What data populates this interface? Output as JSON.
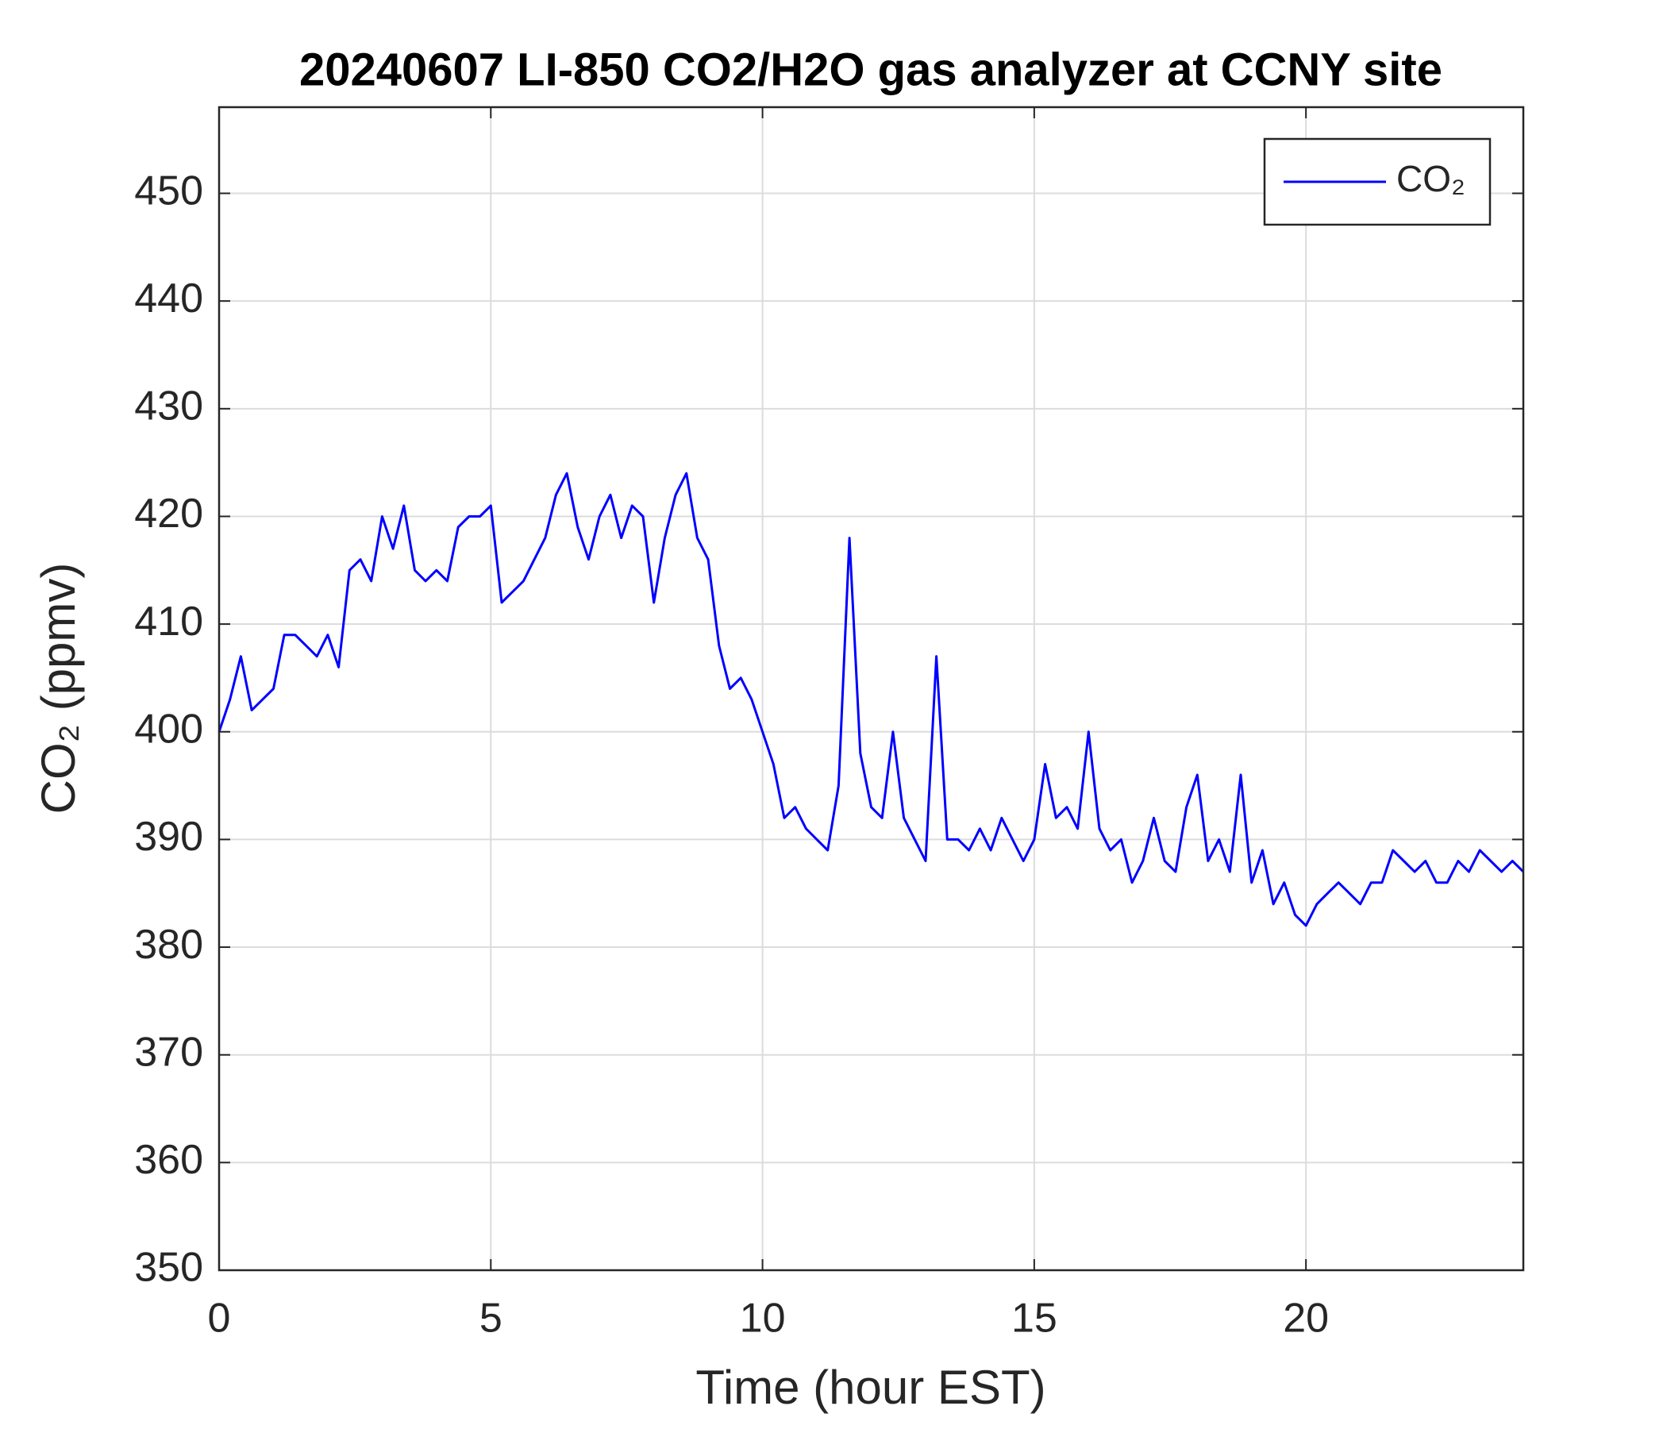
{
  "chart_data": {
    "type": "line",
    "title": "20240607 LI-850 CO2/H2O gas analyzer at CCNY site",
    "xlabel": "Time (hour EST)",
    "ylabel": "CO₂ (ppmv)",
    "x": [
      0,
      0.2,
      0.4,
      0.6,
      0.8,
      1,
      1.2,
      1.4,
      1.6,
      1.8,
      2,
      2.2,
      2.4,
      2.6,
      2.8,
      3,
      3.2,
      3.4,
      3.6,
      3.8,
      4,
      4.2,
      4.4,
      4.6,
      4.8,
      5,
      5.2,
      5.4,
      5.6,
      5.8,
      6,
      6.2,
      6.4,
      6.6,
      6.8,
      7,
      7.2,
      7.4,
      7.6,
      7.8,
      8,
      8.2,
      8.4,
      8.6,
      8.8,
      9,
      9.2,
      9.4,
      9.6,
      9.8,
      10,
      10.2,
      10.4,
      10.6,
      10.8,
      11,
      11.2,
      11.4,
      11.6,
      11.8,
      12,
      12.2,
      12.4,
      12.6,
      12.8,
      13,
      13.2,
      13.4,
      13.6,
      13.8,
      14,
      14.2,
      14.4,
      14.6,
      14.8,
      15,
      15.2,
      15.4,
      15.6,
      15.8,
      16,
      16.2,
      16.4,
      16.6,
      16.8,
      17,
      17.2,
      17.4,
      17.6,
      17.8,
      18,
      18.2,
      18.4,
      18.6,
      18.8,
      19,
      19.2,
      19.4,
      19.6,
      19.8,
      20,
      20.2,
      20.4,
      20.6,
      20.8,
      21,
      21.2,
      21.4,
      21.6,
      21.8,
      22,
      22.2,
      22.4,
      22.6,
      22.8,
      23,
      23.2,
      23.4,
      23.6,
      23.8,
      24
    ],
    "series": [
      {
        "name": "CO₂",
        "color": "#0000ff",
        "values": [
          400,
          403,
          407,
          402,
          403,
          404,
          409,
          409,
          408,
          407,
          409,
          406,
          415,
          416,
          414,
          420,
          417,
          421,
          415,
          414,
          415,
          414,
          419,
          420,
          420,
          421,
          412,
          413,
          414,
          416,
          418,
          422,
          424,
          419,
          416,
          420,
          422,
          418,
          421,
          420,
          412,
          418,
          422,
          424,
          418,
          416,
          408,
          404,
          405,
          403,
          400,
          397,
          392,
          393,
          391,
          390,
          389,
          395,
          418,
          398,
          393,
          392,
          400,
          392,
          390,
          388,
          407,
          390,
          390,
          389,
          391,
          389,
          392,
          390,
          388,
          390,
          397,
          392,
          393,
          391,
          400,
          391,
          389,
          390,
          386,
          388,
          392,
          388,
          387,
          393,
          396,
          388,
          390,
          387,
          396,
          386,
          389,
          384,
          386,
          383,
          382,
          384,
          385,
          386,
          385,
          384,
          386,
          386,
          389,
          388,
          387,
          388,
          386,
          386,
          388,
          387,
          389,
          388,
          387,
          388,
          387
        ]
      }
    ],
    "xlim": [
      0,
      24
    ],
    "xticks": [
      0,
      5,
      10,
      15,
      20
    ],
    "ylim": [
      350,
      458
    ],
    "yticks": [
      350,
      360,
      370,
      380,
      390,
      400,
      410,
      420,
      430,
      440,
      450
    ],
    "grid": true,
    "legend": "upper right"
  }
}
